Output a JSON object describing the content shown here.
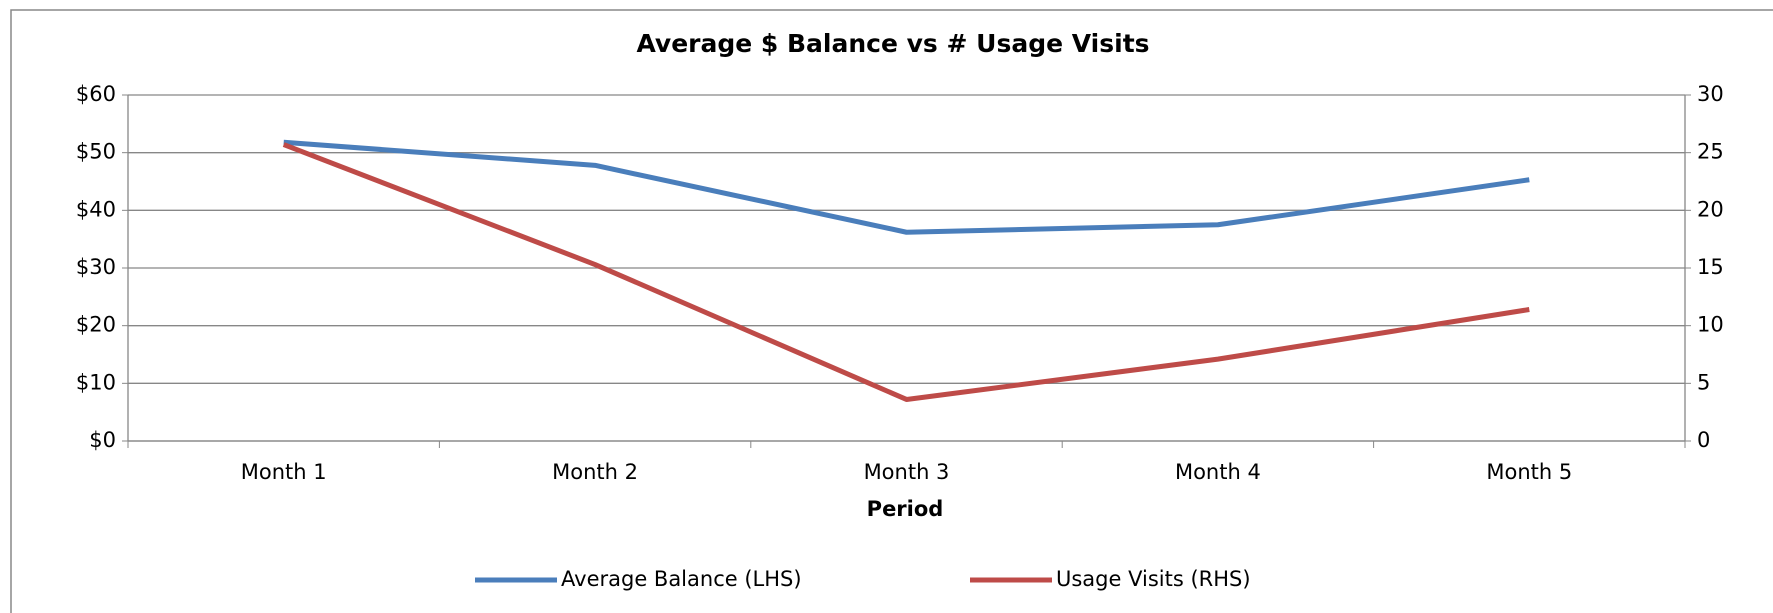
{
  "chart_data": {
    "type": "line",
    "title": "Average $ Balance vs # Usage Visits",
    "x_label": "Period",
    "categories": [
      "Month 1",
      "Month 2",
      "Month 3",
      "Month 4",
      "Month 5"
    ],
    "series": [
      {
        "name": "Average Balance (LHS)",
        "color": "#4a7ebb",
        "values": [
          51.8,
          47.8,
          36.2,
          37.5,
          45.3
        ]
      },
      {
        "name": "Usage Visits (RHS)",
        "color": "#be4b48",
        "axis": "y2",
        "values": [
          25.7,
          15.3,
          3.6,
          7.1,
          11.4
        ]
      }
    ],
    "ylim": [
      0,
      60
    ],
    "yticks": [
      {
        "value": 0,
        "label": "$0"
      },
      {
        "value": 10,
        "label": "$10"
      },
      {
        "value": 20,
        "label": "$20"
      },
      {
        "value": 30,
        "label": "$30"
      },
      {
        "value": 40,
        "label": "$40"
      },
      {
        "value": 50,
        "label": "$50"
      },
      {
        "value": 60,
        "label": "$60"
      }
    ],
    "y2lim": [
      0,
      30
    ],
    "y2ticks": [
      0,
      5,
      10,
      15,
      20,
      25,
      30
    ],
    "grid": true,
    "legend": "bottom"
  }
}
